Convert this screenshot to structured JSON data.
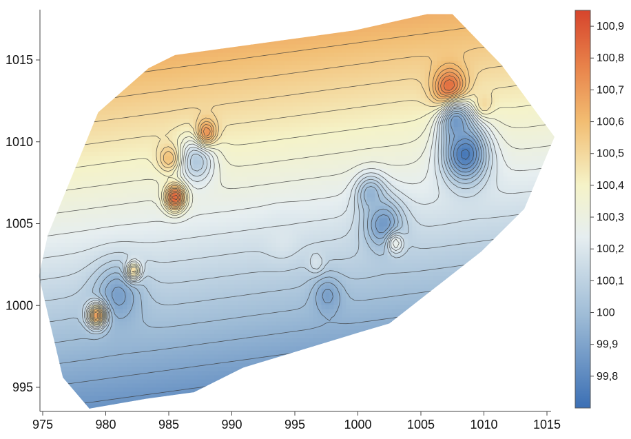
{
  "chart_data": {
    "type": "heatmap",
    "subtype": "filled-contour-with-isolines",
    "title": "",
    "xlabel": "",
    "ylabel": "",
    "xlim": [
      975,
      1016
    ],
    "ylim": [
      993.5,
      1018
    ],
    "x_ticks": [
      "975",
      "980",
      "985",
      "990",
      "995",
      "1000",
      "1005",
      "1010",
      "1015"
    ],
    "y_ticks": [
      "995",
      "1000",
      "1005",
      "1010",
      "1015"
    ],
    "colorbar": {
      "range": [
        99.7,
        100.95
      ],
      "ticks": [
        "99,8",
        "99,9",
        "100",
        "100,1",
        "100,2",
        "100,3",
        "100,4",
        "100,5",
        "100,6",
        "100,7",
        "100,8",
        "100,9"
      ],
      "colors": [
        "#3b6fb4",
        "#f5f3dc",
        "#d6442c"
      ],
      "placement": "right"
    },
    "domain_polygon": [
      [
        978.7,
        993.7
      ],
      [
        976.6,
        995.6
      ],
      [
        974.7,
        1001.8
      ],
      [
        975.4,
        1004.3
      ],
      [
        979.4,
        1011.8
      ],
      [
        983.4,
        1014.5
      ],
      [
        985.5,
        1015.3
      ],
      [
        999.7,
        1016.8
      ],
      [
        1005.5,
        1017.8
      ],
      [
        1007.5,
        1017.8
      ],
      [
        1011.4,
        1014.7
      ],
      [
        1015.6,
        1010.3
      ],
      [
        1013.2,
        1005.9
      ],
      [
        1009.8,
        1003.3
      ],
      [
        1002.5,
        998.9
      ],
      [
        1000.3,
        998.4
      ],
      [
        990.9,
        996.2
      ],
      [
        987.0,
        994.7
      ],
      [
        983.2,
        994.3
      ]
    ],
    "surface": {
      "base_value": 100.2,
      "gradient": {
        "x_center": 995,
        "y_center": 1005,
        "dz_dx": -0.004,
        "dz_dy": 0.038
      },
      "features": [
        {
          "x": 1007.3,
          "y": 1013.2,
          "value": 100.9,
          "radius": 0.9
        },
        {
          "x": 1008.5,
          "y": 1009.3,
          "value": 99.72,
          "radius": 1.3
        },
        {
          "x": 1007.8,
          "y": 1011.2,
          "value": 99.85,
          "radius": 0.9
        },
        {
          "x": 1010.0,
          "y": 1012.3,
          "value": 100.5,
          "radius": 0.5
        },
        {
          "x": 1002.0,
          "y": 1005.0,
          "value": 99.85,
          "radius": 1.1
        },
        {
          "x": 1001.0,
          "y": 1006.8,
          "value": 99.95,
          "radius": 0.8
        },
        {
          "x": 1003.0,
          "y": 1003.8,
          "value": 100.3,
          "radius": 0.45
        },
        {
          "x": 987.2,
          "y": 1008.8,
          "value": 100.05,
          "radius": 1.0
        },
        {
          "x": 985.5,
          "y": 1006.6,
          "value": 100.9,
          "radius": 0.55
        },
        {
          "x": 988.0,
          "y": 1010.6,
          "value": 100.75,
          "radius": 0.55
        },
        {
          "x": 985.0,
          "y": 1009.0,
          "value": 100.6,
          "radius": 0.6
        },
        {
          "x": 981.0,
          "y": 1000.6,
          "value": 99.88,
          "radius": 1.3
        },
        {
          "x": 979.3,
          "y": 999.4,
          "value": 100.75,
          "radius": 0.5
        },
        {
          "x": 982.2,
          "y": 1002.1,
          "value": 100.55,
          "radius": 0.4
        },
        {
          "x": 997.6,
          "y": 1000.6,
          "value": 99.88,
          "radius": 0.8
        },
        {
          "x": 996.7,
          "y": 1002.6,
          "value": 100.2,
          "radius": 0.4
        },
        {
          "x": 994.0,
          "y": 1004.2,
          "value": 100.2,
          "radius": 0.9
        }
      ]
    },
    "contour_step": 0.05
  }
}
